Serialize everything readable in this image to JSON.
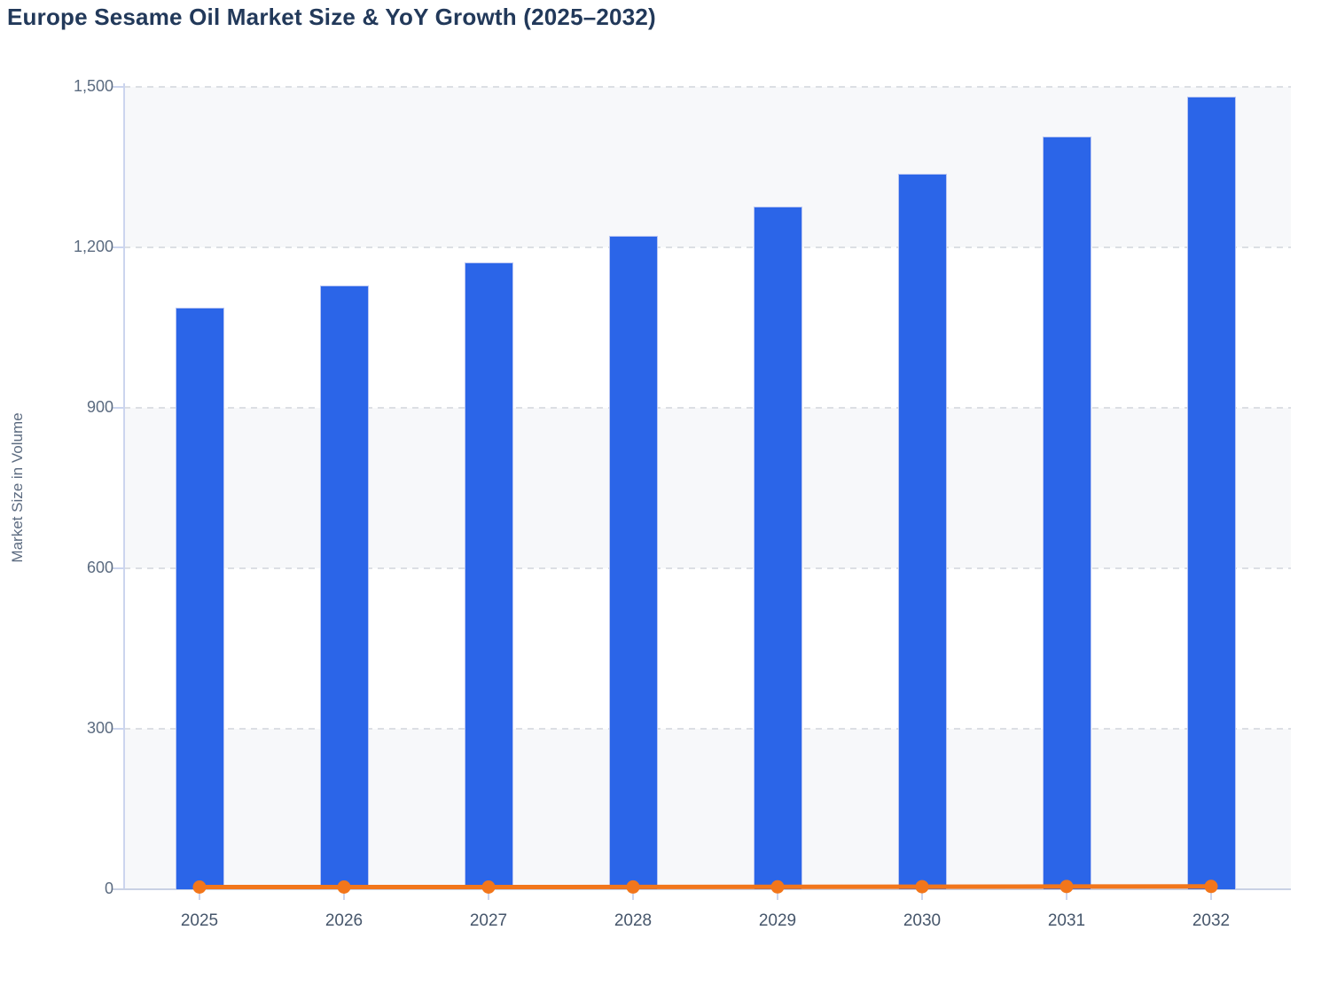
{
  "header": {
    "title": "Europe Sesame Oil Market Size & YoY Growth (2025–2032)"
  },
  "chart_data": {
    "type": "combo",
    "subtypes": [
      "bar",
      "line"
    ],
    "title": "Europe Sesame Oil Market Size & YoY Growth (2025–2032)",
    "xlabel": "",
    "ylabel": "Market Size in Volume",
    "categories": [
      "2025",
      "2026",
      "2027",
      "2028",
      "2029",
      "2030",
      "2031",
      "2032"
    ],
    "series": [
      {
        "name": "Market Size in Volume",
        "type": "bar",
        "color": "#2b65e8",
        "values": [
          1088,
          1128,
          1172,
          1222,
          1277,
          1338,
          1407,
          1482
        ]
      },
      {
        "name": "YoY Growth",
        "type": "line",
        "color": "#f2761b",
        "values": [
          3.5,
          3.7,
          3.9,
          4.3,
          4.5,
          4.8,
          5.2,
          5.3
        ],
        "axis_note": "plotted on shared 0-1500 axis, hugs zero baseline"
      }
    ],
    "ylim": [
      0,
      1500
    ],
    "y_tick_values": [
      0,
      300,
      600,
      900,
      1200,
      1500
    ],
    "y_tick_labels": [
      "0",
      "300",
      "600",
      "900",
      "1,200",
      "1,500"
    ],
    "grid": "horizontal dashed gridlines with alternating background bands",
    "legend": "none"
  },
  "colors": {
    "bar": "#2b65e8",
    "bar_border": "#b9c6f3",
    "line": "#f2761b",
    "title_text": "#22395a",
    "y_tick_text": "#5b6b80",
    "x_tick_text": "#46566b",
    "axis_line": "#ccd5ee",
    "baseline": "#c9d1e4",
    "gridline": "#dcdfe4",
    "band_gray": "#f7f8fa",
    "band_white": "#ffffff",
    "background": "#ffffff"
  }
}
